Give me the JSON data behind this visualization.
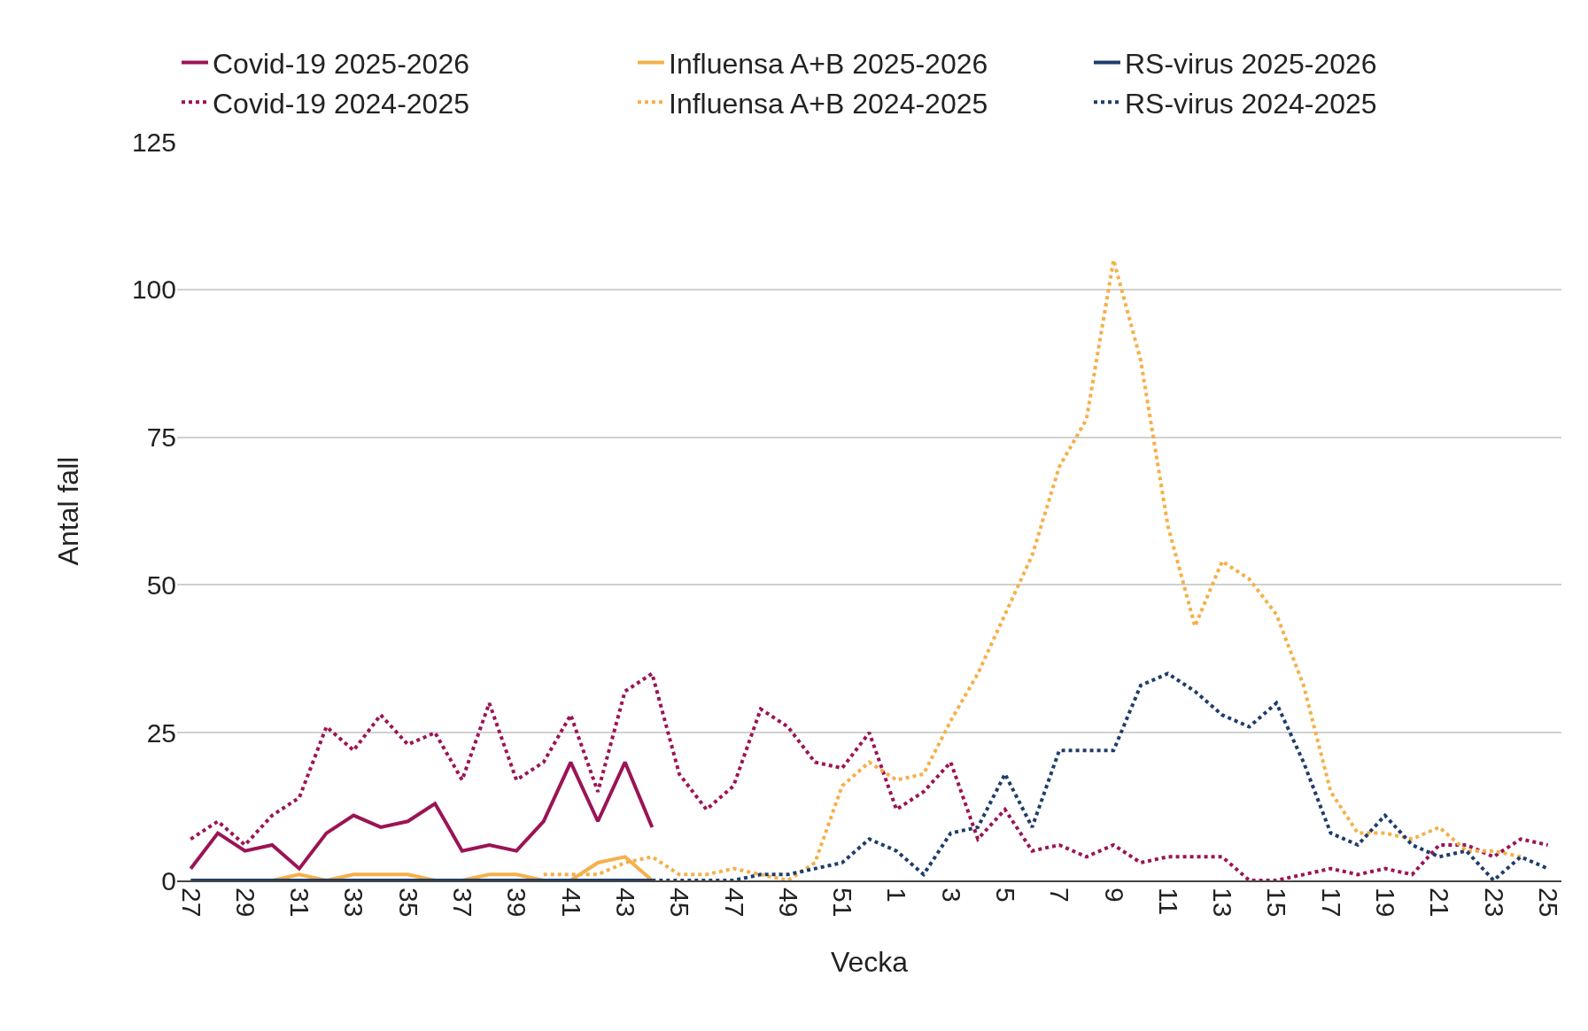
{
  "chart_data": {
    "type": "line",
    "xlabel": "Vecka",
    "ylabel": "Antal fall",
    "categories": [
      "27",
      null,
      "29",
      null,
      "31",
      null,
      "33",
      null,
      "35",
      null,
      "37",
      null,
      "39",
      null,
      "41",
      null,
      "43",
      null,
      "45",
      null,
      "47",
      null,
      "49",
      null,
      "51",
      null,
      "1",
      null,
      "3",
      null,
      "5",
      null,
      "7",
      null,
      "9",
      null,
      "11",
      null,
      "13",
      null,
      "15",
      null,
      "17",
      null,
      "19",
      null,
      "21",
      null,
      "23",
      null,
      "25"
    ],
    "series": [
      {
        "name": "Covid-19 2025-2026",
        "color": "#9b1455",
        "line_style": "solid",
        "values": [
          2,
          8,
          5,
          6,
          2,
          8,
          11,
          9,
          10,
          13,
          5,
          6,
          5,
          10,
          20,
          10,
          20,
          9,
          null,
          null,
          null,
          null,
          null,
          null,
          null,
          null,
          null,
          null,
          null,
          null,
          null,
          null,
          null,
          null,
          null,
          null,
          null,
          null,
          null,
          null,
          null,
          null,
          null,
          null,
          null,
          null,
          null,
          null,
          null,
          null,
          null
        ]
      },
      {
        "name": "Influensa A+B 2025-2026",
        "color": "#f5b04a",
        "line_style": "solid",
        "values": [
          null,
          null,
          null,
          0,
          1,
          0,
          1,
          1,
          1,
          0,
          0,
          1,
          1,
          0,
          0,
          3,
          4,
          0,
          null,
          null,
          null,
          null,
          null,
          null,
          null,
          null,
          null,
          null,
          null,
          null,
          null,
          null,
          null,
          null,
          null,
          null,
          null,
          null,
          null,
          null,
          null,
          null,
          null,
          null,
          null,
          null,
          null,
          null,
          null,
          null,
          null
        ]
      },
      {
        "name": "RS-virus 2025-2026",
        "color": "#1f3d6b",
        "line_style": "solid",
        "values": [
          0,
          0,
          0,
          0,
          0,
          0,
          0,
          0,
          0,
          0,
          0,
          0,
          0,
          0,
          0,
          0,
          0,
          0,
          null,
          null,
          null,
          null,
          null,
          null,
          null,
          null,
          null,
          null,
          null,
          null,
          null,
          null,
          null,
          null,
          null,
          null,
          null,
          null,
          null,
          null,
          null,
          null,
          null,
          null,
          null,
          null,
          null,
          null,
          null,
          null,
          null
        ]
      },
      {
        "name": "Covid-19 2024-2025",
        "color": "#9b1455",
        "line_style": "dotted",
        "values": [
          7,
          10,
          6,
          11,
          14,
          26,
          22,
          28,
          23,
          25,
          17,
          30,
          17,
          20,
          28,
          15,
          32,
          35,
          18,
          12,
          16,
          29,
          26,
          20,
          19,
          25,
          12,
          15,
          20,
          7,
          12,
          5,
          6,
          4,
          6,
          3,
          4,
          4,
          4,
          0,
          0,
          1,
          2,
          1,
          2,
          1,
          6,
          6,
          4,
          7,
          6
        ]
      },
      {
        "name": "Influensa A+B 2024-2025",
        "color": "#f5b04a",
        "line_style": "dotted",
        "values": [
          null,
          null,
          null,
          null,
          null,
          null,
          null,
          null,
          null,
          null,
          null,
          null,
          null,
          1,
          1,
          1,
          3,
          4,
          1,
          1,
          2,
          1,
          0,
          3,
          16,
          20,
          17,
          18,
          27,
          35,
          45,
          55,
          70,
          78,
          105,
          88,
          60,
          43,
          54,
          51,
          45,
          33,
          15,
          8,
          8,
          7,
          9,
          5,
          5,
          4,
          null
        ]
      },
      {
        "name": "RS-virus 2024-2025",
        "color": "#1f3d6b",
        "line_style": "dotted",
        "values": [
          null,
          null,
          null,
          null,
          null,
          null,
          null,
          null,
          null,
          null,
          null,
          null,
          null,
          null,
          null,
          null,
          null,
          0,
          0,
          0,
          0,
          1,
          1,
          2,
          3,
          7,
          5,
          1,
          8,
          9,
          18,
          9,
          22,
          22,
          22,
          33,
          35,
          32,
          28,
          26,
          30,
          20,
          8,
          6,
          11,
          6,
          4,
          5,
          0,
          4,
          2
        ]
      }
    ],
    "ylim": [
      0,
      125
    ],
    "yticks": [
      0,
      25,
      50,
      75,
      100,
      125
    ],
    "grid": "y",
    "legend": "top",
    "marker": "none"
  }
}
